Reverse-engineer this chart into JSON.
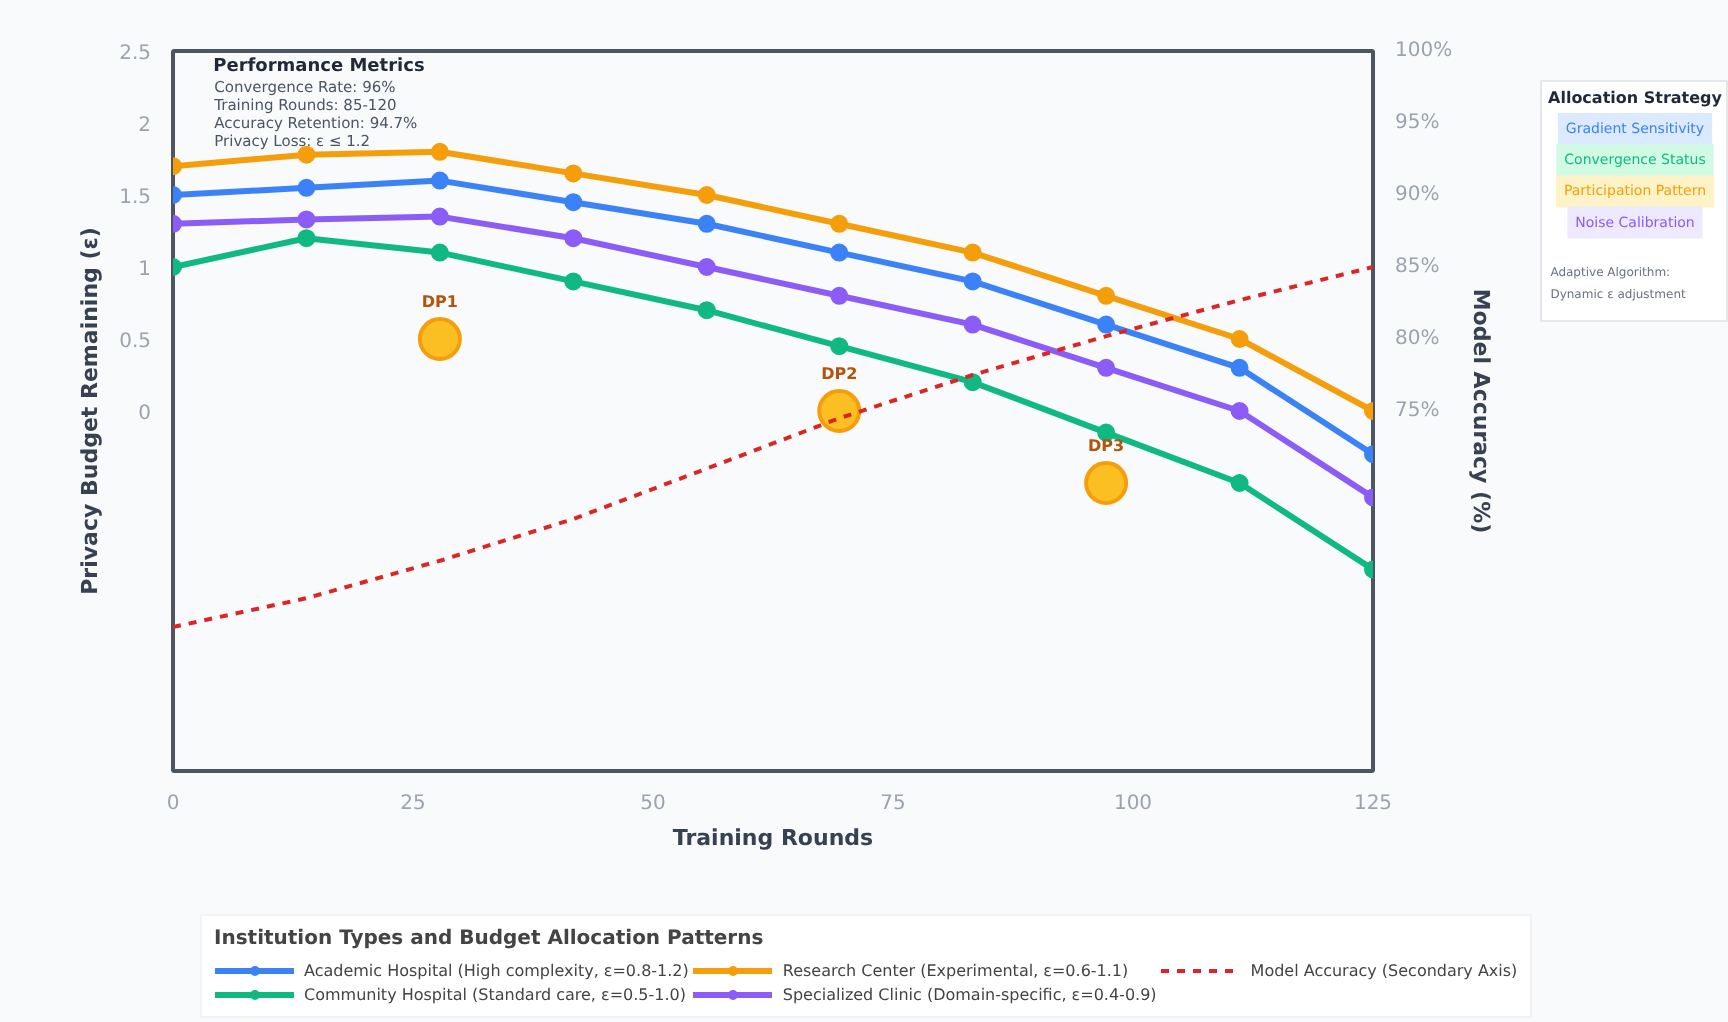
{
  "chart_data": {
    "type": "line",
    "xlabel": "Training Rounds",
    "ylabel": "Privacy Budget Remaining (ε)",
    "y2label": "Model Accuracy (%)",
    "legend_title": "Institution Types and Budget Allocation Patterns",
    "x": [
      0,
      13.9,
      27.8,
      41.7,
      55.6,
      69.4,
      83.3,
      97.2,
      111.1,
      125
    ],
    "series": [
      {
        "name": "Academic Hospital (High complexity, ε=0.8-1.2)",
        "color": "#3b82f6",
        "values": [
          1.5,
          1.55,
          1.6,
          1.45,
          1.3,
          1.1,
          0.9,
          0.6,
          0.3,
          -0.3
        ]
      },
      {
        "name": "Community Hospital (Standard care, ε=0.5-1.0)",
        "color": "#10b981",
        "values": [
          1.0,
          1.2,
          1.1,
          0.9,
          0.7,
          0.45,
          0.2,
          -0.15,
          -0.5,
          -1.1
        ]
      },
      {
        "name": "Research Center (Experimental, ε=0.6-1.1)",
        "color": "#f59e0b",
        "values": [
          1.7,
          1.78,
          1.8,
          1.65,
          1.5,
          1.3,
          1.1,
          0.8,
          0.5,
          0.0
        ]
      },
      {
        "name": "Specialized Clinic (Domain-specific, ε=0.4-0.9)",
        "color": "#8b5cf6",
        "values": [
          1.3,
          1.33,
          1.35,
          1.2,
          1.0,
          0.8,
          0.6,
          0.3,
          0.0,
          -0.6
        ]
      },
      {
        "name": "Model Accuracy (Secondary Axis)",
        "color": "#dc2626",
        "axis": "y2",
        "line_style": "dashed",
        "marker": "none",
        "values": [
          60,
          62,
          64.6,
          67.5,
          71,
          74.5,
          77.5,
          80.2,
          82.7,
          85
        ]
      },
      {
        "type": "scatter",
        "color": "#fbbf24",
        "x": [
          27.8,
          69.4,
          97.2
        ],
        "values": [
          0.5,
          0.0,
          -0.5
        ]
      }
    ],
    "xlim": [
      0,
      125
    ],
    "xticks": [
      0,
      25,
      50,
      75,
      100,
      125
    ],
    "ylim": [
      -2.5,
      2.5
    ],
    "yticks": [
      0,
      0.5,
      1,
      1.5,
      2,
      2.5
    ],
    "y2lim": [
      50,
      100
    ],
    "y2ticks": [
      {
        "value": 75,
        "label": "75%"
      },
      {
        "value": 80,
        "label": "80%"
      },
      {
        "value": 85,
        "label": "85%"
      },
      {
        "value": 90,
        "label": "90%"
      },
      {
        "value": 95,
        "label": "95%"
      },
      {
        "value": 100,
        "label": "100%"
      }
    ],
    "marker": "circle",
    "line_style": "solid",
    "legend": "bottom",
    "grid": false,
    "annotations": [
      {
        "text": "DP1",
        "x": 27.8,
        "y": 0.5
      },
      {
        "text": "DP2",
        "x": 69.4,
        "y": 0.0
      },
      {
        "text": "DP3",
        "x": 97.2,
        "y": -0.5
      },
      "Performance Metrics",
      "Convergence Rate: 96%",
      "Training Rounds: 85-120",
      "Accuracy Retention: 94.7%",
      "Privacy Loss: ε ≤ 1.2",
      "Allocation Strategy",
      "Gradient Sensitivity",
      "Convergence Status",
      "Participation Pattern",
      "Noise Calibration",
      "Adaptive Algorithm:",
      "Dynamic ε adjustment"
    ]
  }
}
